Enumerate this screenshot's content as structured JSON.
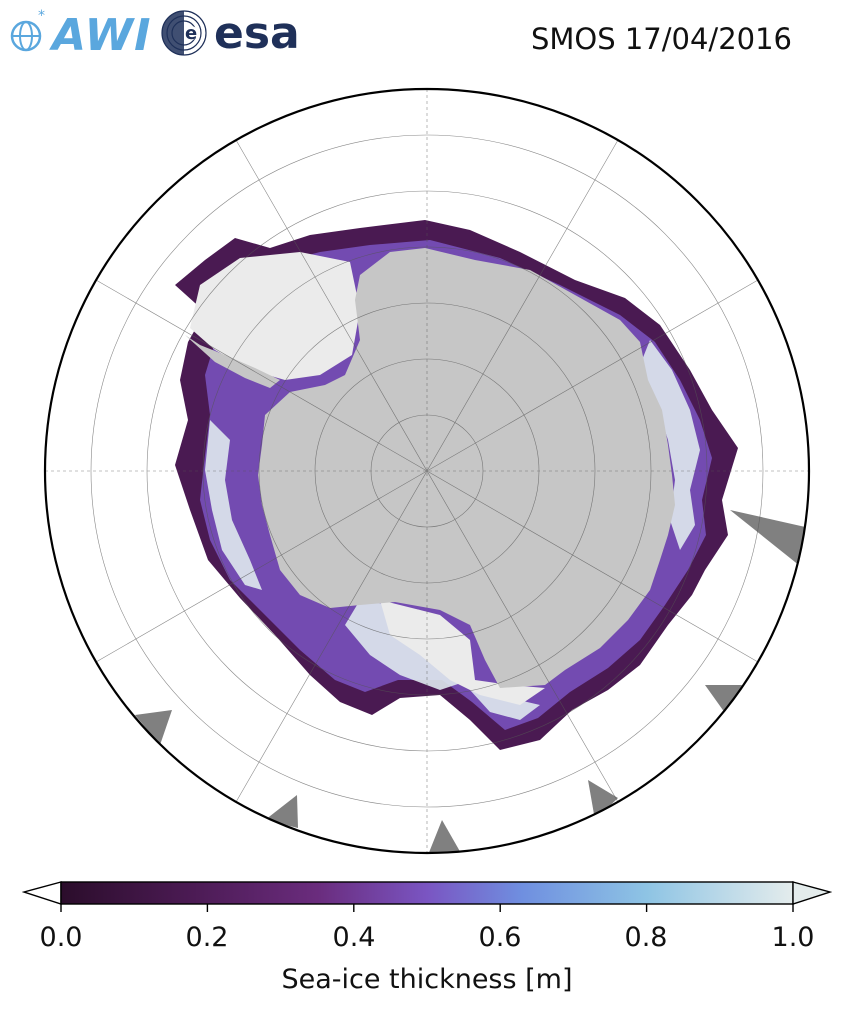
{
  "header": {
    "logo_left": "AWI",
    "logo_right": "esa",
    "title": "SMOS 17/04/2016"
  },
  "colorbar": {
    "label": "Sea-ice thickness [m]",
    "ticks": [
      "0.0",
      "0.2",
      "0.4",
      "0.6",
      "0.8",
      "1.0"
    ],
    "min": 0.0,
    "max": 1.0,
    "colors": [
      "#2b0d2b",
      "#4a1a52",
      "#6a2c7d",
      "#7a55c2",
      "#6f8fe0",
      "#8ec4e4",
      "#e4ecec"
    ]
  },
  "map": {
    "projection": "south-polar-stereographic",
    "land_color": "#c6c6c6",
    "ice_shelf_color": "#ebebeb",
    "no_data_color": "#808080",
    "graticule": "on"
  }
}
